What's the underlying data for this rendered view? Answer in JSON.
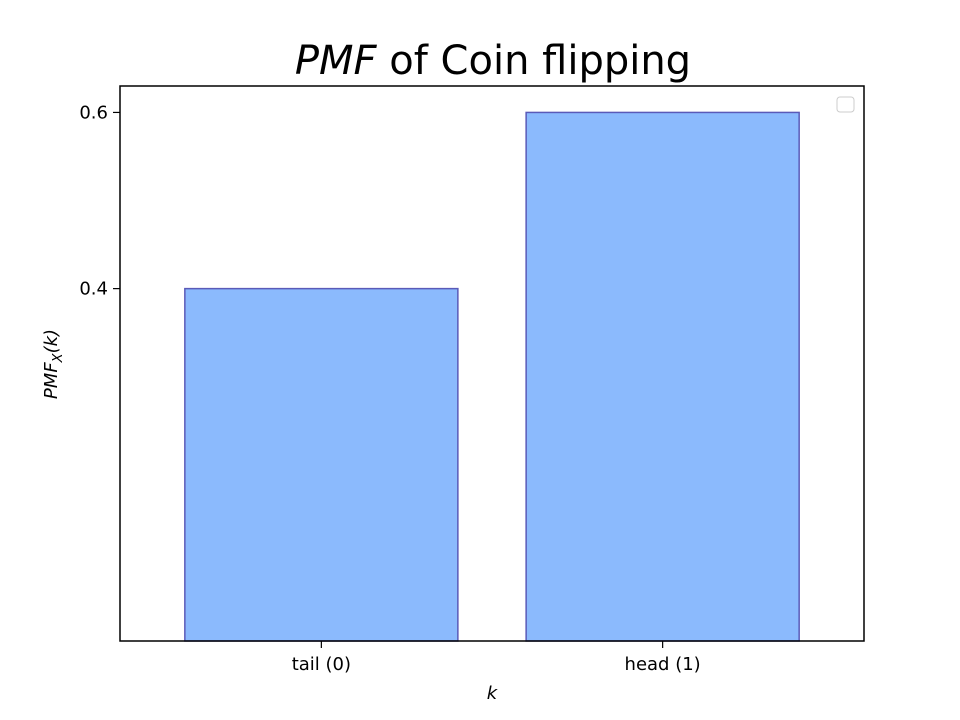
{
  "chart_data": {
    "type": "bar",
    "title": {
      "italic_part": "PMF",
      "rest": " of Coin flipping"
    },
    "xlabel": "k",
    "ylabel": {
      "main": "PMF",
      "subscript": "X",
      "suffix": "(k)"
    },
    "categories": [
      "tail (0)",
      "head (1)"
    ],
    "values": [
      0.4,
      0.6
    ],
    "yticks": [
      {
        "value": 0.4,
        "label": "0.4"
      },
      {
        "value": 0.6,
        "label": "0.6"
      }
    ],
    "ylim": [
      0,
      0.63
    ],
    "bar_color": "#8bbafd",
    "bar_edge_color": "#5a5ab8",
    "grid": false,
    "legend": {
      "placement": "top-right",
      "entries": []
    }
  }
}
